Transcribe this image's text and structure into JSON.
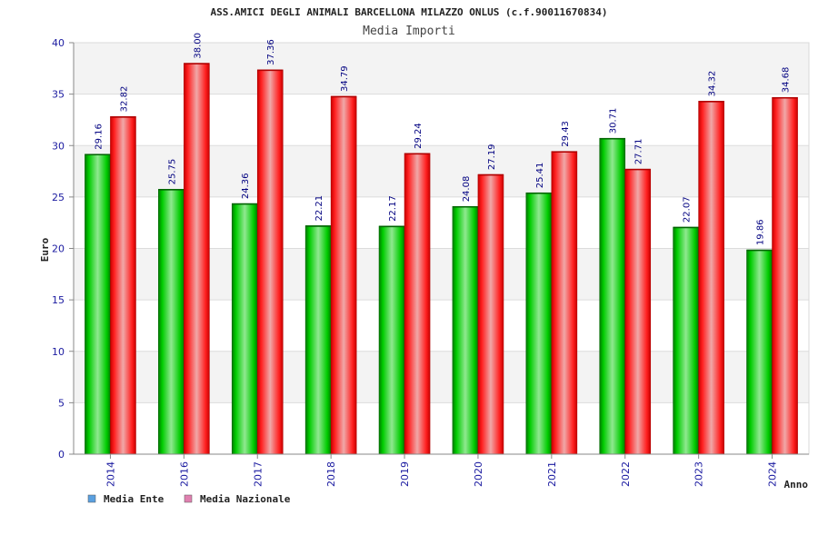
{
  "chart_data": {
    "type": "bar",
    "title": "ASS.AMICI DEGLI ANIMALI BARCELLONA MILAZZO ONLUS (c.f.90011670834)",
    "subtitle": "Media Importi",
    "xlabel": "Anno",
    "ylabel": "Euro",
    "ylim": [
      0,
      40
    ],
    "yticks": [
      "0",
      "5",
      "10",
      "15",
      "20",
      "25",
      "30",
      "35",
      "40"
    ],
    "grid": true,
    "legend_position": "bottom-left",
    "categories": [
      "2014",
      "2016",
      "2017",
      "2018",
      "2019",
      "2020",
      "2021",
      "2022",
      "2023",
      "2024"
    ],
    "series": [
      {
        "name": "Media Ente",
        "color": "#00b000",
        "legend_color": "#5aa0e0",
        "values": [
          29.16,
          25.75,
          24.36,
          22.21,
          22.17,
          24.08,
          25.41,
          30.71,
          22.07,
          19.86
        ],
        "labels": [
          "29.16",
          "25.75",
          "24.36",
          "22.21",
          "22.17",
          "24.08",
          "25.41",
          "30.71",
          "22.07",
          "19.86"
        ]
      },
      {
        "name": "Media Nazionale",
        "color": "#ee0000",
        "legend_color": "#e080b0",
        "values": [
          32.82,
          38.0,
          37.36,
          34.79,
          29.24,
          27.19,
          29.43,
          27.71,
          34.32,
          34.68
        ],
        "labels": [
          "32.82",
          "38.00",
          "37.36",
          "34.79",
          "29.24",
          "27.19",
          "29.43",
          "27.71",
          "34.32",
          "34.68"
        ]
      }
    ]
  }
}
